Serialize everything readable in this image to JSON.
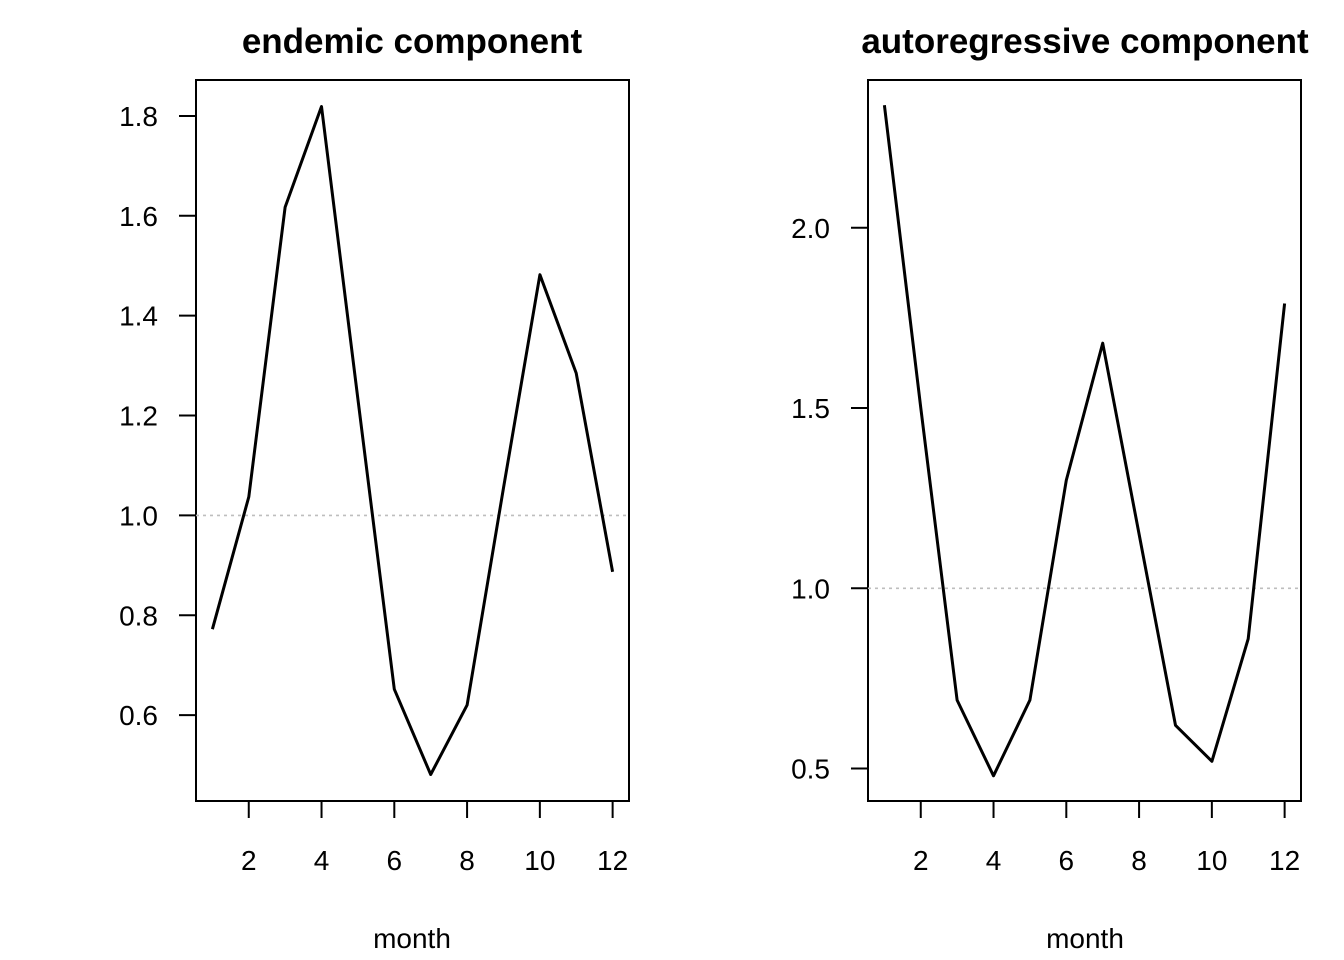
{
  "chart_data": [
    {
      "type": "line",
      "title": "endemic component",
      "xlabel": "month",
      "ylabel": "",
      "x": [
        1,
        2,
        3,
        4,
        5,
        6,
        7,
        8,
        9,
        10,
        11,
        12
      ],
      "values": [
        0.772,
        1.037,
        1.617,
        1.819,
        1.233,
        0.652,
        0.481,
        0.62,
        1.055,
        1.482,
        1.285,
        0.887
      ],
      "xlim": [
        0.55,
        12.45
      ],
      "ylim": [
        0.428,
        1.872
      ],
      "xticks": [
        2,
        4,
        6,
        8,
        10,
        12
      ],
      "xtick_labels": [
        "2",
        "4",
        "6",
        "8",
        "10",
        "12"
      ],
      "yticks": [
        0.6,
        0.8,
        1.0,
        1.2,
        1.4,
        1.6,
        1.8
      ],
      "ytick_labels": [
        "0.6",
        "0.8",
        "1.0",
        "1.2",
        "1.4",
        "1.6",
        "1.8"
      ],
      "reference_line": 1.0,
      "grid": false,
      "line_color": "#000000",
      "reference_color": "#bebebe"
    },
    {
      "type": "line",
      "title": "autoregressive component",
      "xlabel": "month",
      "ylabel": "",
      "x": [
        1,
        2,
        3,
        4,
        5,
        6,
        7,
        8,
        9,
        10,
        11,
        12
      ],
      "values": [
        2.34,
        1.5,
        0.69,
        0.48,
        0.69,
        1.3,
        1.68,
        1.15,
        0.62,
        0.52,
        0.86,
        1.79
      ],
      "xlim": [
        0.55,
        12.45
      ],
      "ylim": [
        0.41,
        2.41
      ],
      "xticks": [
        2,
        4,
        6,
        8,
        10,
        12
      ],
      "xtick_labels": [
        "2",
        "4",
        "6",
        "8",
        "10",
        "12"
      ],
      "yticks": [
        0.5,
        1.0,
        1.5,
        2.0
      ],
      "ytick_labels": [
        "0.5",
        "1.0",
        "1.5",
        "2.0"
      ],
      "reference_line": 1.0,
      "grid": false,
      "line_color": "#000000",
      "reference_color": "#bebebe"
    }
  ]
}
